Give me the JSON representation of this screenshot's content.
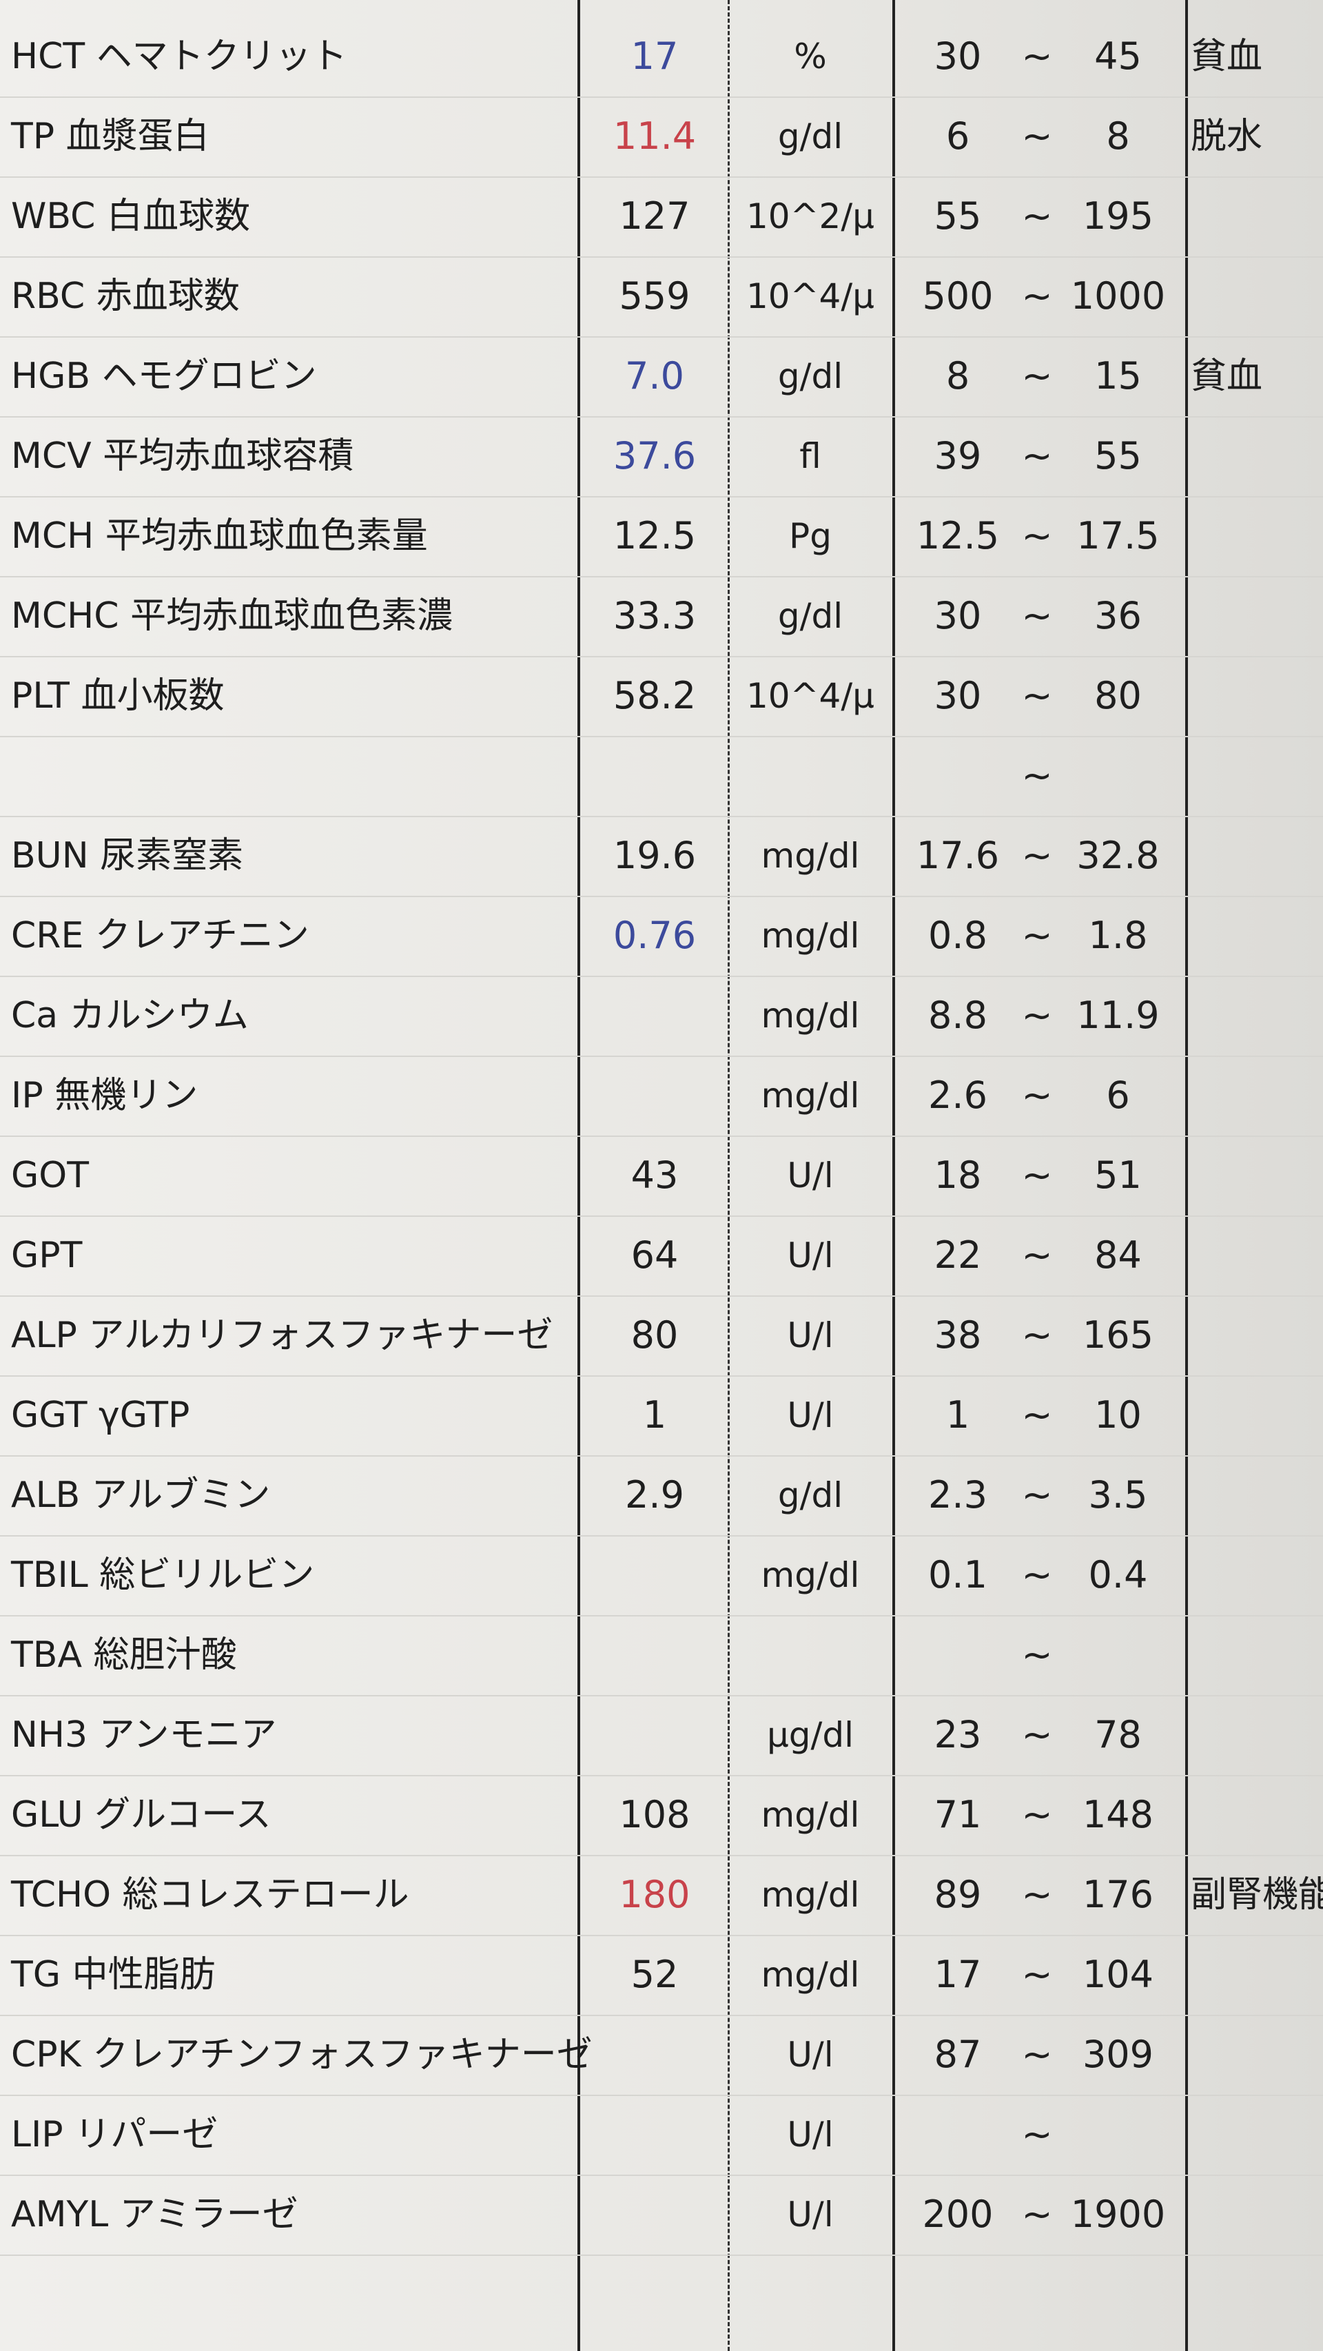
{
  "table": {
    "rows": [
      {
        "name": "HCT ヘマトクリット",
        "value": "17",
        "value_color": "#3c4a9c",
        "unit": "%",
        "low": "30",
        "sep": "~",
        "high": "45",
        "note": "貧血"
      },
      {
        "name": "TP 血漿蛋白",
        "value": "11.4",
        "value_color": "#c8424a",
        "unit": "g/dl",
        "low": "6",
        "sep": "~",
        "high": "8",
        "note": "脱水"
      },
      {
        "name": "WBC 白血球数",
        "value": "127",
        "unit": "10^2/μ",
        "low": "55",
        "sep": "~",
        "high": "195"
      },
      {
        "name": "RBC 赤血球数",
        "value": "559",
        "unit": "10^4/μ",
        "low": "500",
        "sep": "~",
        "high": "1000"
      },
      {
        "name": "HGB ヘモグロビン",
        "value": "7.0",
        "value_color": "#3c4a9c",
        "unit": "g/dl",
        "low": "8",
        "sep": "~",
        "high": "15",
        "note": "貧血"
      },
      {
        "name": "MCV 平均赤血球容積",
        "value": "37.6",
        "value_color": "#3c4a9c",
        "unit": "fl",
        "low": "39",
        "sep": "~",
        "high": "55"
      },
      {
        "name": "MCH 平均赤血球血色素量",
        "value": "12.5",
        "unit": "Pg",
        "low": "12.5",
        "sep": "~",
        "high": "17.5"
      },
      {
        "name": "MCHC 平均赤血球血色素濃",
        "value": "33.3",
        "unit": "g/dl",
        "low": "30",
        "sep": "~",
        "high": "36"
      },
      {
        "name": "PLT 血小板数",
        "value": "58.2",
        "unit": "10^4/μ",
        "low": "30",
        "sep": "~",
        "high": "80"
      },
      {
        "sep": "~"
      },
      {
        "name": "BUN 尿素窒素",
        "value": "19.6",
        "unit": "mg/dl",
        "low": "17.6",
        "sep": "~",
        "high": "32.8"
      },
      {
        "name": "CRE クレアチニン",
        "value": "0.76",
        "value_color": "#3c4a9c",
        "unit": "mg/dl",
        "low": "0.8",
        "sep": "~",
        "high": "1.8"
      },
      {
        "name": "Ca カルシウム",
        "unit": "mg/dl",
        "low": "8.8",
        "sep": "~",
        "high": "11.9"
      },
      {
        "name": "IP 無機リン",
        "unit": "mg/dl",
        "low": "2.6",
        "sep": "~",
        "high": "6"
      },
      {
        "name": "GOT",
        "value": "43",
        "unit": "U/l",
        "low": "18",
        "sep": "~",
        "high": "51"
      },
      {
        "name": "GPT",
        "value": "64",
        "unit": "U/l",
        "low": "22",
        "sep": "~",
        "high": "84"
      },
      {
        "name": "ALP アルカリフォスファキナーゼ",
        "value": "80",
        "unit": "U/l",
        "low": "38",
        "sep": "~",
        "high": "165"
      },
      {
        "name": "GGT γGTP",
        "value": "1",
        "unit": "U/l",
        "low": "1",
        "sep": "~",
        "high": "10"
      },
      {
        "name": "ALB アルブミン",
        "value": "2.9",
        "unit": "g/dl",
        "low": "2.3",
        "sep": "~",
        "high": "3.5"
      },
      {
        "name": "TBIL 総ビリルビン",
        "unit": "mg/dl",
        "low": "0.1",
        "sep": "~",
        "high": "0.4"
      },
      {
        "name": "TBA 総胆汁酸",
        "sep": "~"
      },
      {
        "name": "NH3 アンモニア",
        "unit": "μg/dl",
        "low": "23",
        "sep": "~",
        "high": "78"
      },
      {
        "name": "GLU グルコース",
        "value": "108",
        "unit": "mg/dl",
        "low": "71",
        "sep": "~",
        "high": "148"
      },
      {
        "name": "TCHO 総コレステロール",
        "value": "180",
        "value_color": "#c8424a",
        "unit": "mg/dl",
        "low": "89",
        "sep": "~",
        "high": "176",
        "note": "副腎機能亢"
      },
      {
        "name": "TG 中性脂肪",
        "value": "52",
        "unit": "mg/dl",
        "low": "17",
        "sep": "~",
        "high": "104"
      },
      {
        "name": "CPK クレアチンフォスファキナーゼ",
        "unit": "U/l",
        "low": "87",
        "sep": "~",
        "high": "309"
      },
      {
        "name": "LIP リパーゼ",
        "unit": "U/l",
        "sep": "~"
      },
      {
        "name": "AMYL アミラーゼ",
        "unit": "U/l",
        "low": "200",
        "sep": "~",
        "high": "1900"
      }
    ]
  }
}
